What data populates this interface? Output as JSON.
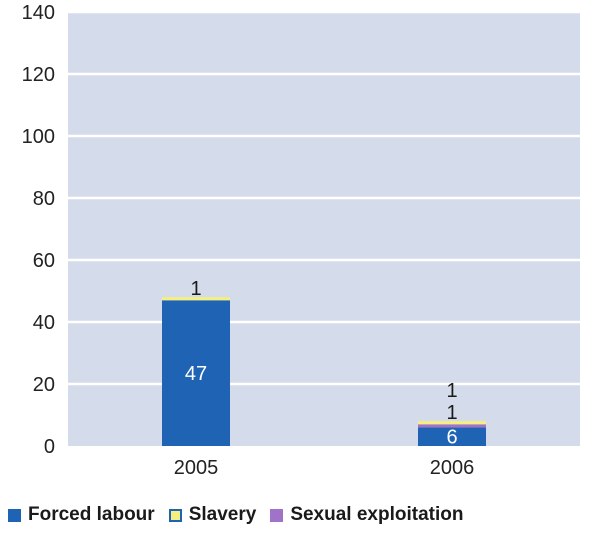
{
  "chart_data": {
    "type": "bar",
    "stacked": true,
    "categories": [
      "2005",
      "2006"
    ],
    "series": [
      {
        "name": "Forced labour",
        "values": [
          47,
          6
        ],
        "color": "#1f64b4",
        "label_color": "#ffffff",
        "labels": [
          "47",
          "6"
        ]
      },
      {
        "name": "Sexual exploitation",
        "values": [
          0,
          1
        ],
        "color": "#a173c8",
        "label_color": "#1a1a1a",
        "labels": [
          "",
          "1"
        ]
      },
      {
        "name": "Slavery",
        "values": [
          1,
          1
        ],
        "color": "#f5f07d",
        "label_color": "#1a1a1a",
        "labels": [
          "1",
          "1"
        ]
      }
    ],
    "legend_order": [
      "Forced labour",
      "Slavery",
      "Sexual exploitation"
    ],
    "ylim": [
      0,
      140
    ],
    "yticks": [
      "0",
      "20",
      "40",
      "60",
      "80",
      "100",
      "120",
      "140"
    ],
    "grid": true,
    "legend_position": "bottom",
    "plot_background": "#d4dbeb"
  }
}
